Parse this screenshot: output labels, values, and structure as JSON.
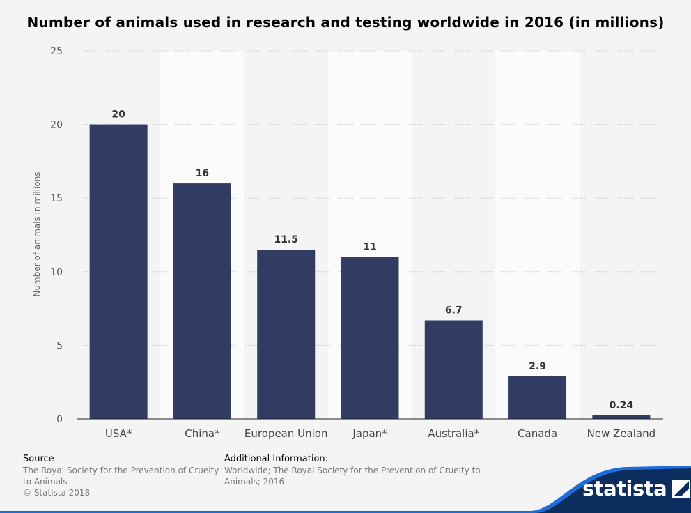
{
  "chart_data": {
    "type": "bar",
    "title": "Number of animals used in research and testing worldwide in 2016 (in millions)",
    "ylabel": "Number of animals in millions",
    "xlabel": "",
    "categories": [
      "USA*",
      "China*",
      "European Union",
      "Japan*",
      "Australia*",
      "Canada",
      "New Zealand"
    ],
    "values": [
      20,
      16,
      11.5,
      11,
      6.7,
      2.9,
      0.24
    ],
    "value_labels": [
      "20",
      "16",
      "11.5",
      "11",
      "6.7",
      "2.9",
      "0.24"
    ],
    "ylim": [
      0,
      25
    ],
    "yticks": [
      "0",
      "5",
      "10",
      "15",
      "20",
      "25"
    ],
    "grid": true,
    "bar_color": "#323b62"
  },
  "footer": {
    "source_heading": "Source",
    "source_text": "The Royal Society for the Prevention of Cruelty to Animals",
    "copyright": "© Statista 2018",
    "info_heading": "Additional Information:",
    "info_text": "Worldwide; The Royal Society for the Prevention of Cruelty to Animals; 2016"
  },
  "brand": {
    "name": "statista",
    "color": "#0c2e5e",
    "accent": "#1f6dd6"
  }
}
